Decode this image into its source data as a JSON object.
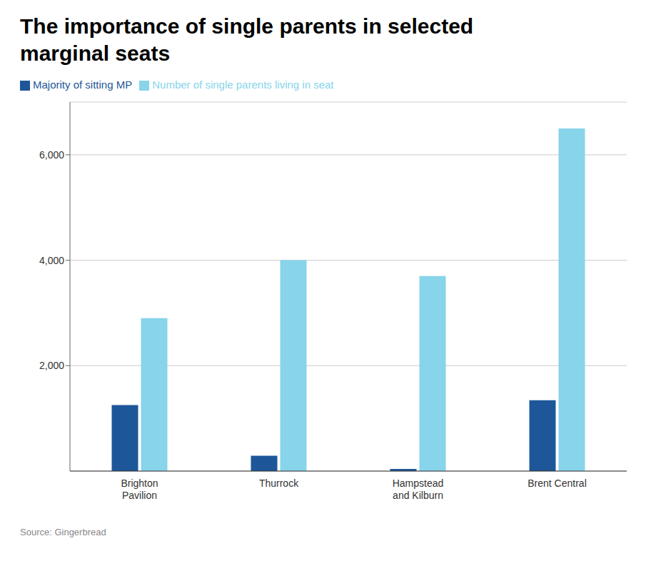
{
  "chart_data": {
    "type": "bar",
    "title": "The importance of single parents in selected\nmarginal seats",
    "categories": [
      "Brighton\nPavilion",
      "Thurrock",
      "Hampstead\nand Kilburn",
      "Brent Central"
    ],
    "series": [
      {
        "name": "Majority of sitting MP",
        "color": "#1e5799",
        "values": [
          1252,
          292,
          42,
          1345
        ]
      },
      {
        "name": "Number of single parents living in seat",
        "color": "#87d4eb",
        "values": [
          2900,
          4000,
          3700,
          6500
        ]
      }
    ],
    "ylim": [
      0,
      7000
    ],
    "yticks": [
      {
        "value": 2000,
        "label": "2,000"
      },
      {
        "value": 4000,
        "label": "4,000"
      },
      {
        "value": 6000,
        "label": "6,000"
      }
    ],
    "grid": true,
    "legend": "upper left",
    "source": "Source: Gingerbread"
  }
}
